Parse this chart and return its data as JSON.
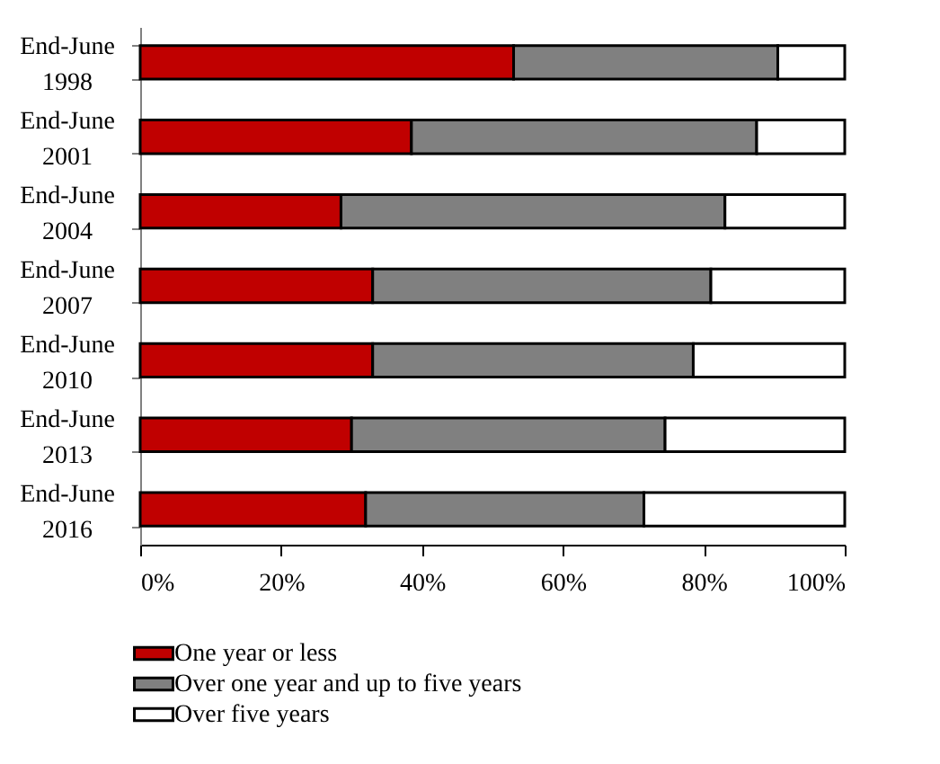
{
  "chart_data": {
    "type": "bar",
    "orientation": "horizontal",
    "stacked": true,
    "categories": [
      "End-June 1998",
      "End-June 2001",
      "End-June 2004",
      "End-June 2007",
      "End-June 2010",
      "End-June 2013",
      "End-June 2016"
    ],
    "series": [
      {
        "name": "One year or less",
        "color": "#c00000",
        "values": [
          53,
          38.5,
          28.5,
          33,
          33,
          30,
          32
        ]
      },
      {
        "name": "Over one year and up to five years",
        "color": "#808080",
        "values": [
          37.5,
          49,
          54.5,
          48,
          45.5,
          44.5,
          39.5
        ]
      },
      {
        "name": "Over five years",
        "color": "#ffffff",
        "values": [
          9.5,
          12.5,
          17,
          19,
          21.5,
          25.5,
          28.5
        ]
      }
    ],
    "xlim": [
      0,
      100
    ],
    "xticks": [
      {
        "value": 0,
        "label": "0%"
      },
      {
        "value": 20,
        "label": "20%"
      },
      {
        "value": 40,
        "label": "40%"
      },
      {
        "value": 60,
        "label": "60%"
      },
      {
        "value": 80,
        "label": "80%"
      },
      {
        "value": 100,
        "label": "100%"
      }
    ],
    "grid": false,
    "legend": "bottom"
  }
}
